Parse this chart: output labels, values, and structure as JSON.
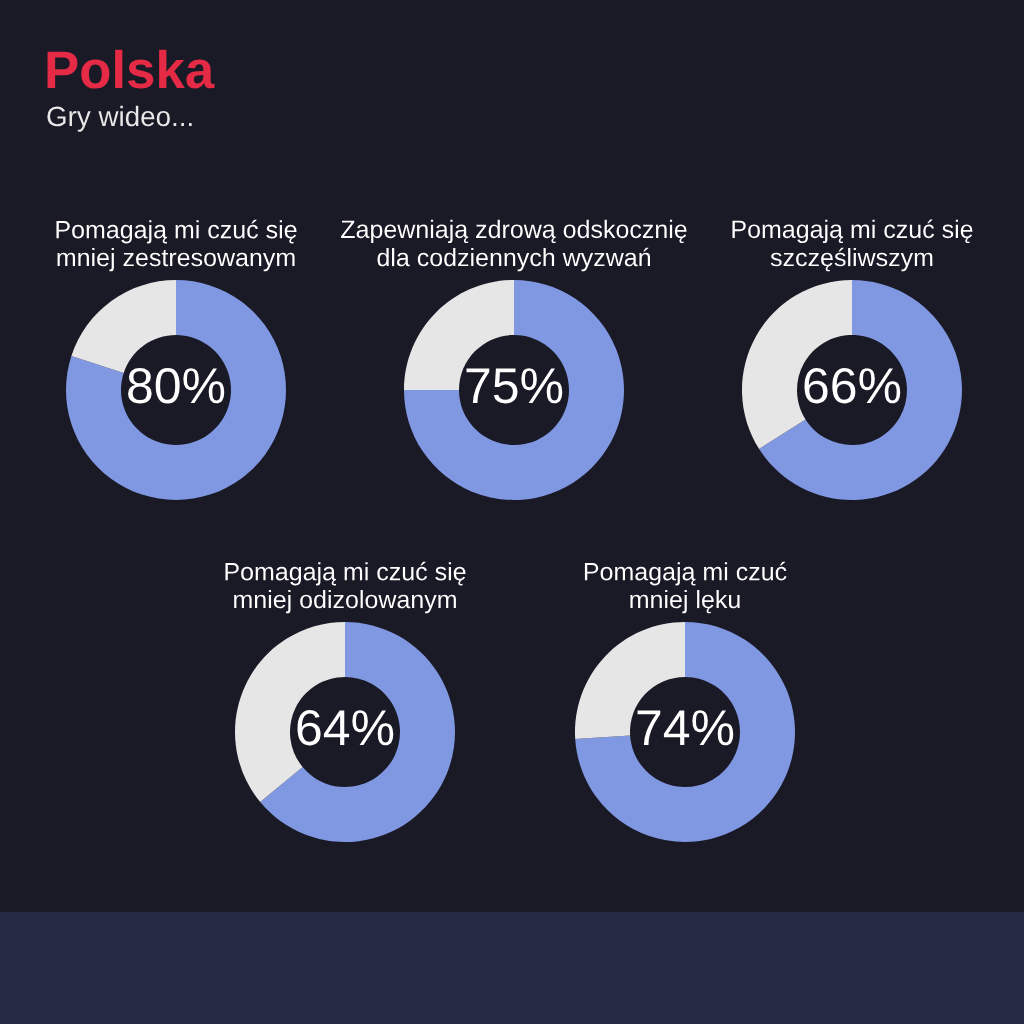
{
  "chart_data": [
    {
      "type": "other",
      "title": "Polska",
      "subtitle": "Gry wideo..."
    },
    {
      "type": "donut",
      "title": "Pomagają mi czuć się\nmniej zestresowanym",
      "categories": [
        null,
        null
      ],
      "values": [
        80,
        20
      ],
      "colors": [
        "#8097e2",
        "#e6e6e6"
      ],
      "value_labels": [
        "80%",
        null
      ]
    },
    {
      "type": "donut",
      "title": "Zapewniają zdrową odskocznię\ndla codziennych wyzwań",
      "categories": [
        null,
        null
      ],
      "values": [
        75,
        25
      ],
      "colors": [
        "#8097e2",
        "#e6e6e6"
      ],
      "value_labels": [
        "75%",
        null
      ]
    },
    {
      "type": "donut",
      "title": "Pomagają mi czuć się\nszczęśliwszym",
      "categories": [
        null,
        null
      ],
      "values": [
        66,
        34
      ],
      "colors": [
        "#8097e2",
        "#e6e6e6"
      ],
      "value_labels": [
        "66%",
        null
      ]
    },
    {
      "type": "donut",
      "title": "Pomagają mi czuć się\nmniej odizolowanym",
      "categories": [
        null,
        null
      ],
      "values": [
        64,
        36
      ],
      "colors": [
        "#8097e2",
        "#e6e6e6"
      ],
      "value_labels": [
        "64%",
        null
      ]
    },
    {
      "type": "donut",
      "title": "Pomagają mi czuć\nmniej lęku",
      "categories": [
        null,
        null
      ],
      "values": [
        74,
        26
      ],
      "colors": [
        "#8097e2",
        "#e6e6e6"
      ],
      "value_labels": [
        "74%",
        null
      ]
    }
  ]
}
